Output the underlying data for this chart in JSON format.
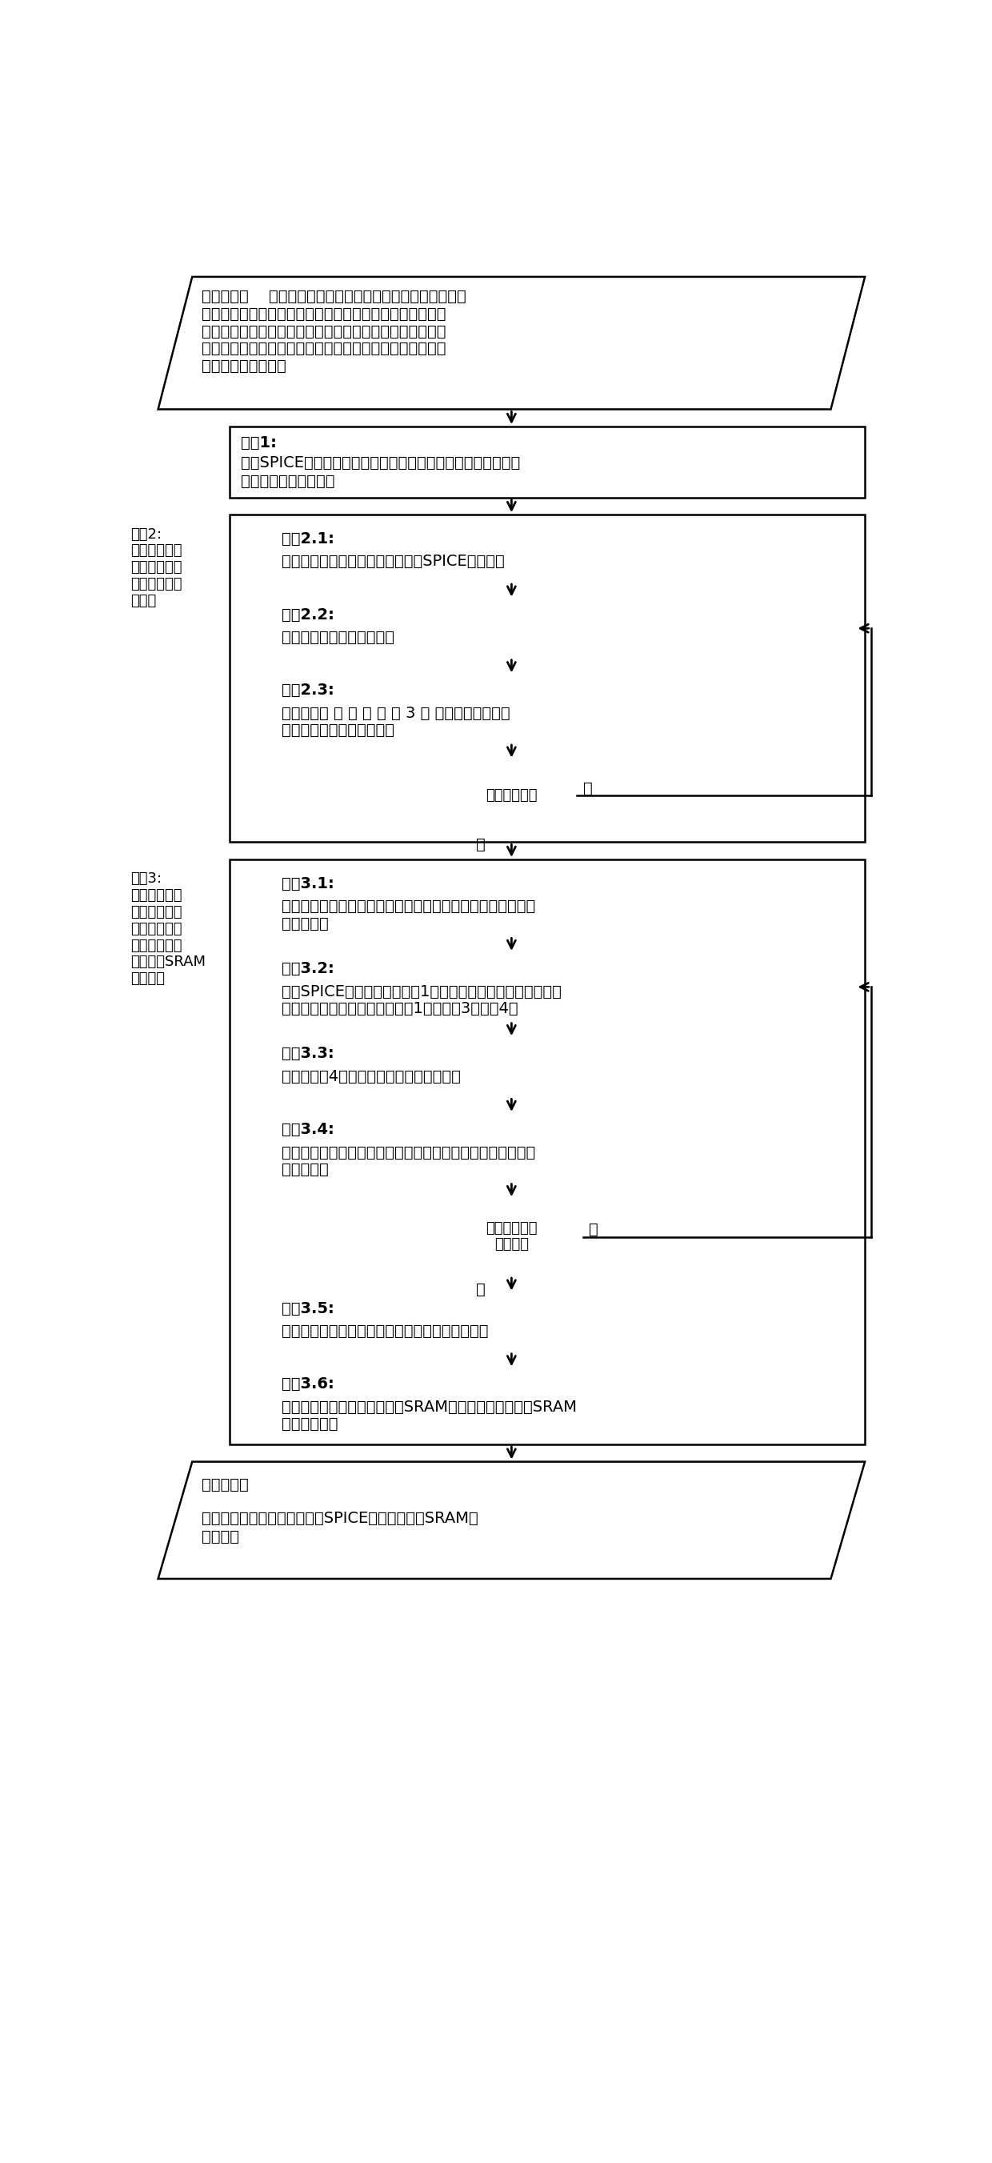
{
  "input_text_line0_bold": "输入参数：",
  "input_text_line0_rest": "参数空间、参数空间维度、参数概率分布密度函",
  "input_text_lines": [
    "数、参数取值范围、电路网表、网格划分精度门限、网格划",
    "分半径范围、划分均匀性参数、滑动窗口半径范围、网格细",
    "分数、滑动窗口尺寸、自适应网格采样数、滑动窗口内采样",
    "数、初始网格划分数"
  ],
  "step1_label": "步骤1:",
  "step1_line1": "通过SPICE仿真利用二分法确定椭球变换系数，并将笛卡尔参数",
  "step1_line2": "空间转换成椭球坐标系",
  "step2_outer_label": "步骤2:\n自适应网格法\n求解每个网格\n的失效边界半\n径范围",
  "step21_label": "步骤2.1:",
  "step21_text": "将椭球参数空间初始划分，并进行SPICE采样仿真",
  "step22_label": "步骤2.2:",
  "step22_text": "迭代仿真计算失效边界半径",
  "step23_label": "步骤2.3:",
  "step23_line1": "对所有网格 按 照 公 式 （ 3 ） 进行均匀性检查，",
  "step23_line2": "以决定是否需要进一步细分",
  "diamond1_text": "是否需要细分",
  "diamond1_yes": "是",
  "diamond1_no": "否",
  "step3_outer_label": "步骤3:\n将网格细分为\n单元，采用滑\n动窗口法求解\n单元的失效边\n界半径及SRAM\n失效概率",
  "step31_label": "步骤3.1:",
  "step31_line1": "将自适应划分的网格细分成单元，并在单元上按照滑动窗口进",
  "step31_line2": "行采样仿真",
  "step32_label": "步骤3.2:",
  "step32_line1": "根据SPICE仿真结果，依据表1调整滑动窗口的失效边界半径，",
  "step32_line2": "并重新次采样仿真，直到满足表1中的情况3或情况4；",
  "step33_label": "步骤3.3:",
  "step33_text": "根据公式（4）计算滑动窗口失效边界半径",
  "step34_label": "步骤3.4:",
  "step34_line1": "滑动窗口依次在每个维度上移动一个单元，在新的滑动窗口进",
  "step34_line2": "行采样仿真",
  "diamond2_line1": "是否参数空间",
  "diamond2_line2": "遍历完成",
  "diamond2_yes": "是",
  "diamond2_no": "否",
  "step35_label": "步骤3.5:",
  "step35_text": "根据滑动窗口失效边界半径计算单元失效边界半径",
  "step36_label": "步骤3.6:",
  "step36_line1": "根据单元的失效边界半径计算SRAM存储单元失效概率和SRAM",
  "step36_line2": "的失效概率。",
  "output_bold": "输出结果：",
  "output_line1": "参数空间失效边界半径、调用SPICE的仿真次数、SRAM失",
  "output_line2": "效概率。"
}
